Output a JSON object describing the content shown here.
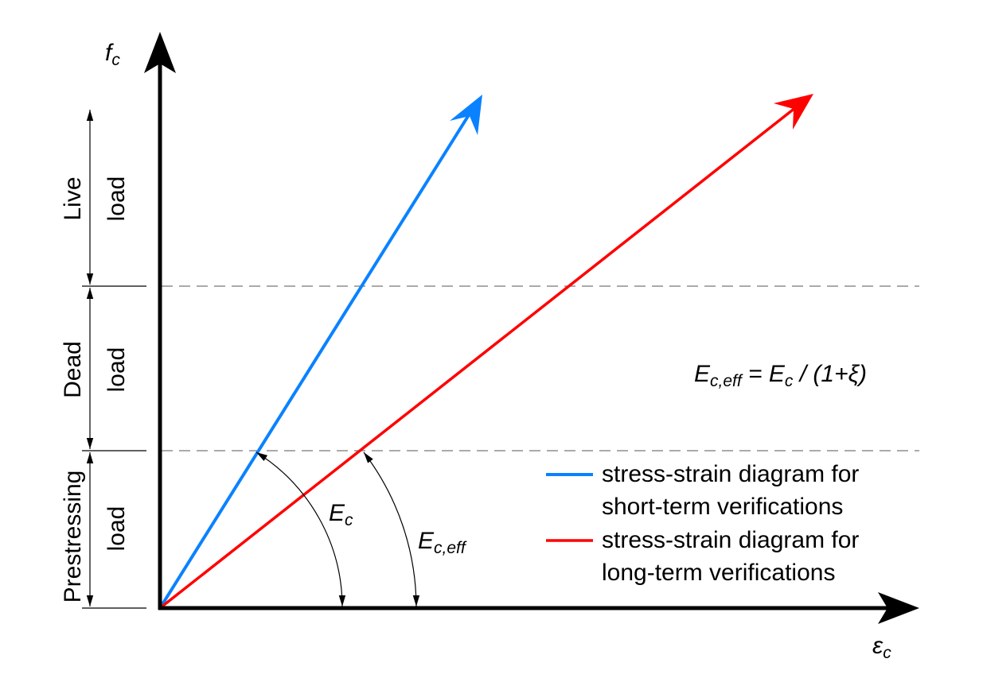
{
  "axes": {
    "y_label": "f",
    "y_label_sub": "c",
    "x_label": "ε",
    "x_label_sub": "c"
  },
  "load_zones": [
    {
      "word1": "Live",
      "word2": "load"
    },
    {
      "word1": "Dead",
      "word2": "load"
    },
    {
      "word1": "Prestressing",
      "word2": "load"
    }
  ],
  "angles": {
    "short_label": "E",
    "short_sub": "c",
    "long_label": "E",
    "long_sub": "c,eff"
  },
  "formula": {
    "lhs": "E",
    "lhs_sub": "c,eff",
    "mid": " = E",
    "mid_sub": "c",
    "rhs": " / (1+ξ)"
  },
  "legend": [
    {
      "color": "#0a82ff",
      "line1": "stress-strain diagram for",
      "line2": "short-term verifications"
    },
    {
      "color": "#ff0000",
      "line1": "stress-strain diagram for",
      "line2": "long-term verifications"
    }
  ]
}
